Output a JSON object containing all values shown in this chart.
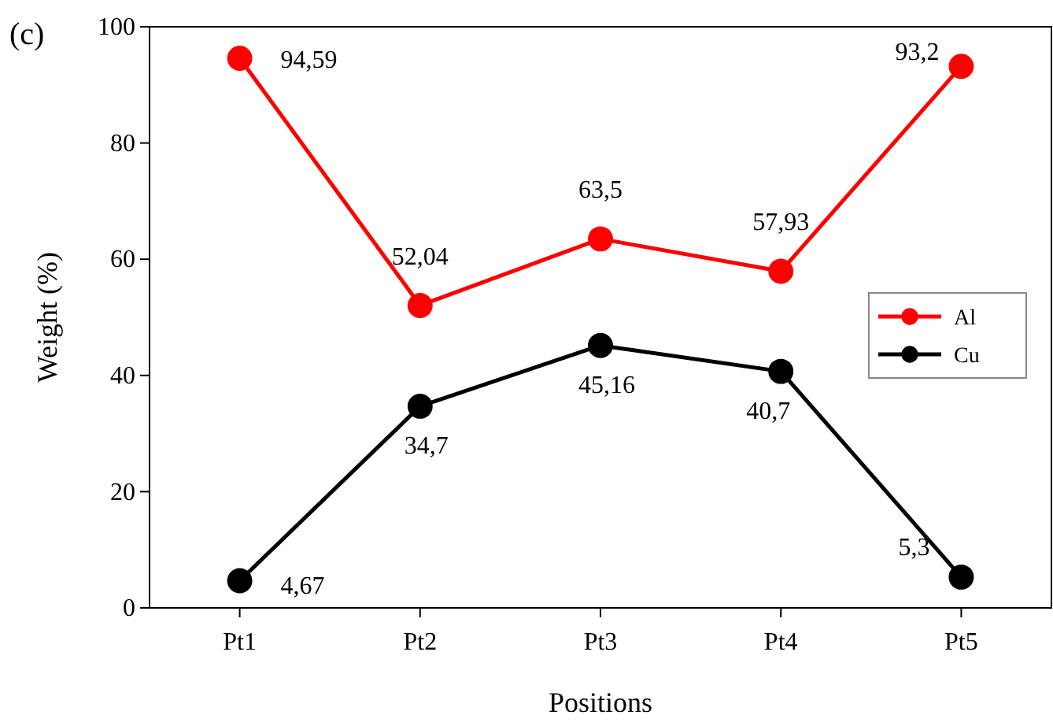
{
  "chart_data": {
    "type": "line",
    "xlabel": "Positions",
    "ylabel": "Weight (%)",
    "annotations": [
      "(c)"
    ],
    "categories": [
      "Pt1",
      "Pt2",
      "Pt3",
      "Pt4",
      "Pt5"
    ],
    "series": [
      {
        "name": "Al",
        "color": "#ff0000",
        "values": [
          94.59,
          52.04,
          63.5,
          57.93,
          93.2
        ],
        "value_labels": [
          "94,59",
          "52,04",
          "63,5",
          "57,93",
          "93,2"
        ]
      },
      {
        "name": "Cu",
        "color": "#000000",
        "values": [
          4.67,
          34.7,
          45.16,
          40.7,
          5.3
        ],
        "value_labels": [
          "4,67",
          "34,7",
          "45,16",
          "40,7",
          "5,3"
        ]
      }
    ],
    "ylim": [
      0,
      100
    ],
    "yticks": [
      0,
      20,
      40,
      60,
      80,
      100
    ],
    "grid": false,
    "legend": "right",
    "marker": "circle",
    "line_style": "solid"
  }
}
